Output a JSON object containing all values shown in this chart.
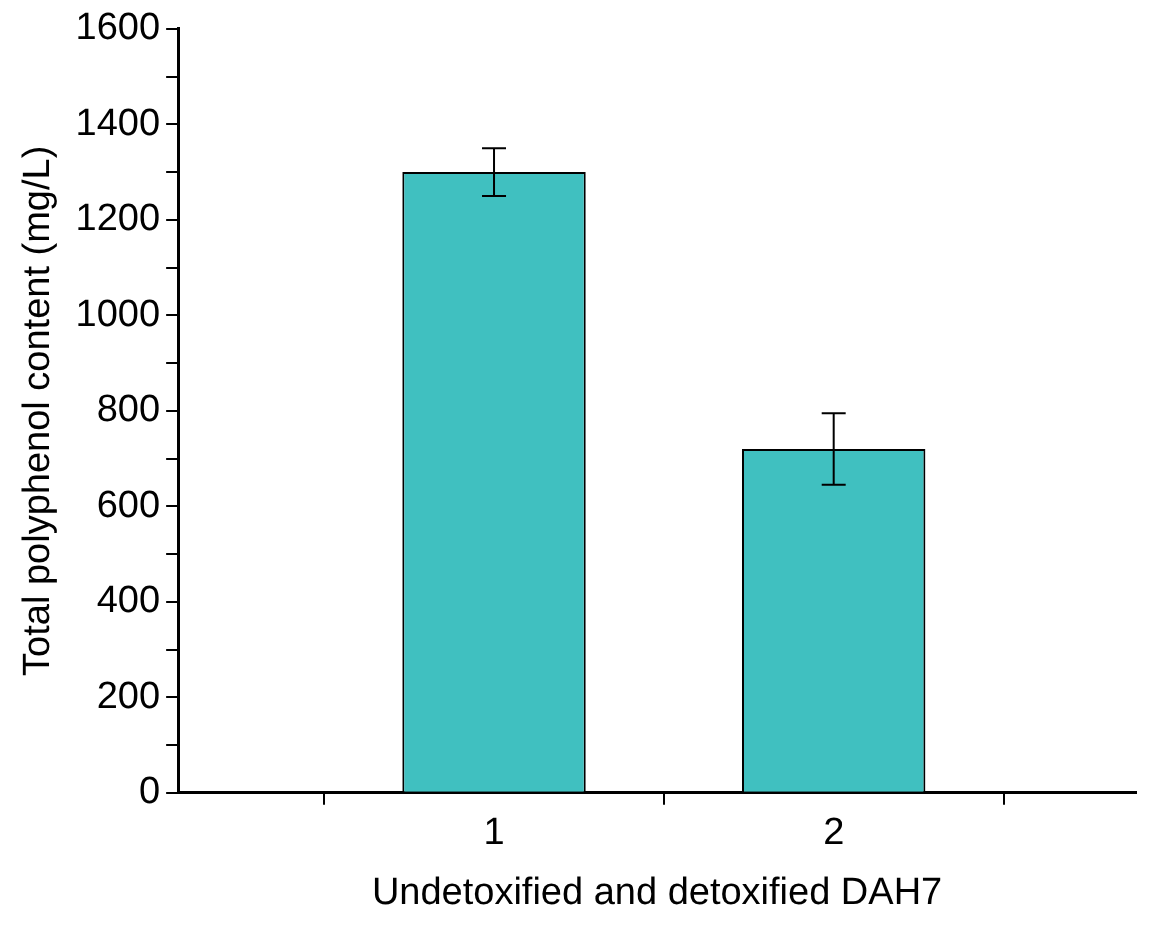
{
  "chart_data": {
    "type": "bar",
    "xlabel": "Undetoxified and detoxified DAH7",
    "ylabel": "Total polyphenol content (mg/L)",
    "x": [
      1,
      2
    ],
    "values": [
      1300,
      720
    ],
    "errors": [
      50,
      75
    ],
    "color": "#40c0c0",
    "xlim": [
      0.07,
      2.89
    ],
    "xticks": [
      1,
      2
    ],
    "ylim": [
      0,
      1600
    ],
    "yticks": [
      0,
      {
        "value": 100,
        "label": null
      },
      200,
      {
        "value": 300,
        "label": null
      },
      400,
      {
        "value": 500,
        "label": null
      },
      600,
      {
        "value": 700,
        "label": null
      },
      800,
      {
        "value": 900,
        "label": null
      },
      1000,
      {
        "value": 1100,
        "label": null
      },
      1200,
      {
        "value": 1300,
        "label": null
      },
      1400,
      {
        "value": 1500,
        "label": null
      },
      1600
    ],
    "grid": false,
    "legend": false
  }
}
